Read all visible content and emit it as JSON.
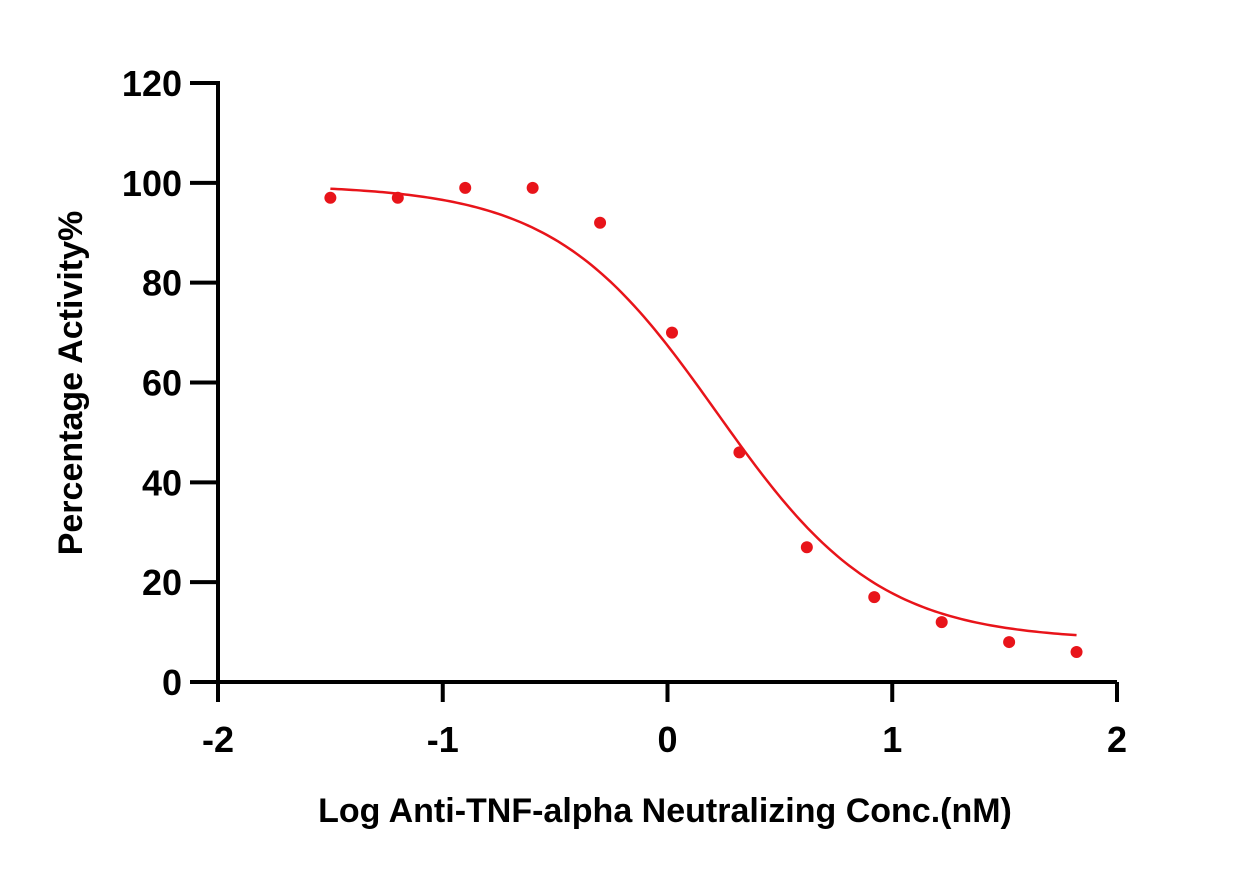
{
  "chart_data": {
    "type": "scatter",
    "xlabel": "Log Anti-TNF-alpha Neutralizing Conc.(nM)",
    "ylabel": "Percentage Activity%",
    "xlim": [
      -2,
      2
    ],
    "ylim": [
      0,
      120
    ],
    "x_ticks": [
      -2,
      -1,
      0,
      1,
      2
    ],
    "x_tick_labels": [
      "-2",
      "-1",
      "0",
      "1",
      "2"
    ],
    "y_ticks": [
      0,
      20,
      40,
      60,
      80,
      100,
      120
    ],
    "y_tick_labels": [
      "0",
      "20",
      "40",
      "60",
      "80",
      "100",
      "120"
    ],
    "grid": false,
    "legend": "none",
    "colors": {
      "series": "#e8141a",
      "axis": "#000000"
    },
    "series": [
      {
        "x": [
          -1.5,
          -1.2,
          -0.9,
          -0.6,
          -0.3,
          0.02,
          0.32,
          0.62,
          0.92,
          1.22,
          1.52,
          1.82
        ],
        "y": [
          97,
          97,
          99,
          99,
          92,
          70,
          46,
          27,
          17,
          12,
          8,
          6
        ]
      }
    ],
    "fit_curve": {
      "model": "four-parameter logistic",
      "top": 99.6,
      "bottom": 8.3,
      "log_ec50": 0.22,
      "hill_slope": -1.2,
      "x_range": [
        -1.5,
        1.82
      ]
    }
  }
}
